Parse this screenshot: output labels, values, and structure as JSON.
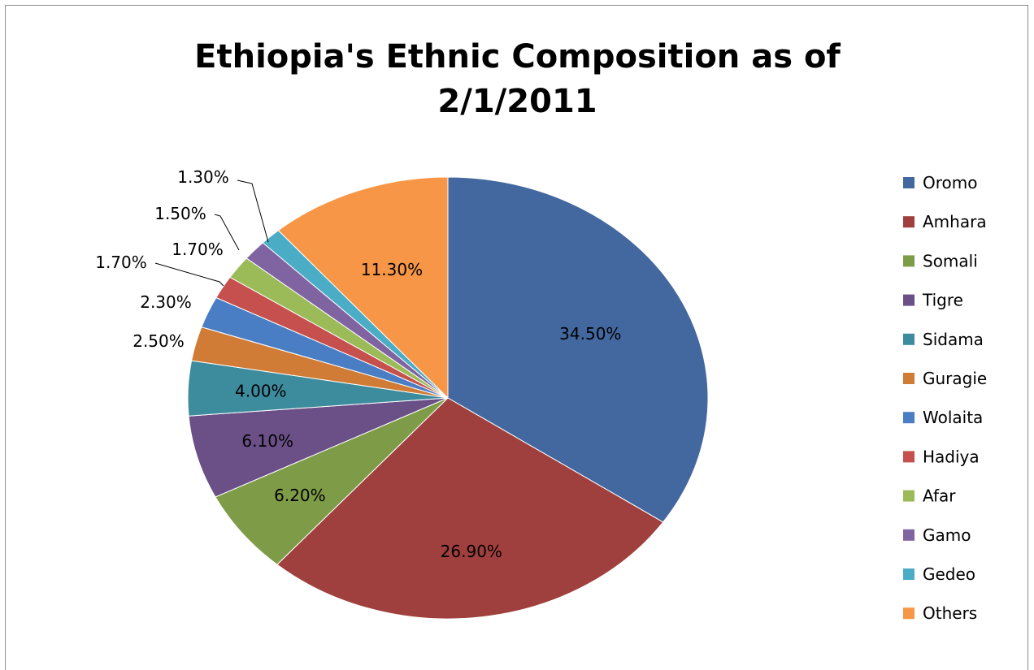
{
  "chart_data": {
    "type": "pie",
    "title_lines": [
      "Ethiopia's Ethnic Composition as of",
      "2/1/2011"
    ],
    "legend_position": "right",
    "slices": [
      {
        "name": "Oromo",
        "value": 34.5,
        "label": "34.50%",
        "color": "#4368A0"
      },
      {
        "name": "Amhara",
        "value": 26.9,
        "label": "26.90%",
        "color": "#A0403E"
      },
      {
        "name": "Somali",
        "value": 6.2,
        "label": "6.20%",
        "color": "#7E9B48"
      },
      {
        "name": "Tigre",
        "value": 6.1,
        "label": "6.10%",
        "color": "#6A5087"
      },
      {
        "name": "Sidama",
        "value": 4.0,
        "label": "4.00%",
        "color": "#3D8C9E"
      },
      {
        "name": "Guragie",
        "value": 2.5,
        "label": "2.50%",
        "color": "#D07B36"
      },
      {
        "name": "Wolaita",
        "value": 2.3,
        "label": "2.30%",
        "color": "#4A7EC4"
      },
      {
        "name": "Hadiya",
        "value": 1.7,
        "label": "1.70%",
        "color": "#C5504D"
      },
      {
        "name": "Afar",
        "value": 1.7,
        "label": "1.70%",
        "color": "#9BBB59"
      },
      {
        "name": "Gamo",
        "value": 1.5,
        "label": "1.50%",
        "color": "#8064A2"
      },
      {
        "name": "Gedeo",
        "value": 1.3,
        "label": "1.30%",
        "color": "#4BACC6"
      },
      {
        "name": "Others",
        "value": 11.3,
        "label": "11.30%",
        "color": "#F79646"
      }
    ]
  }
}
